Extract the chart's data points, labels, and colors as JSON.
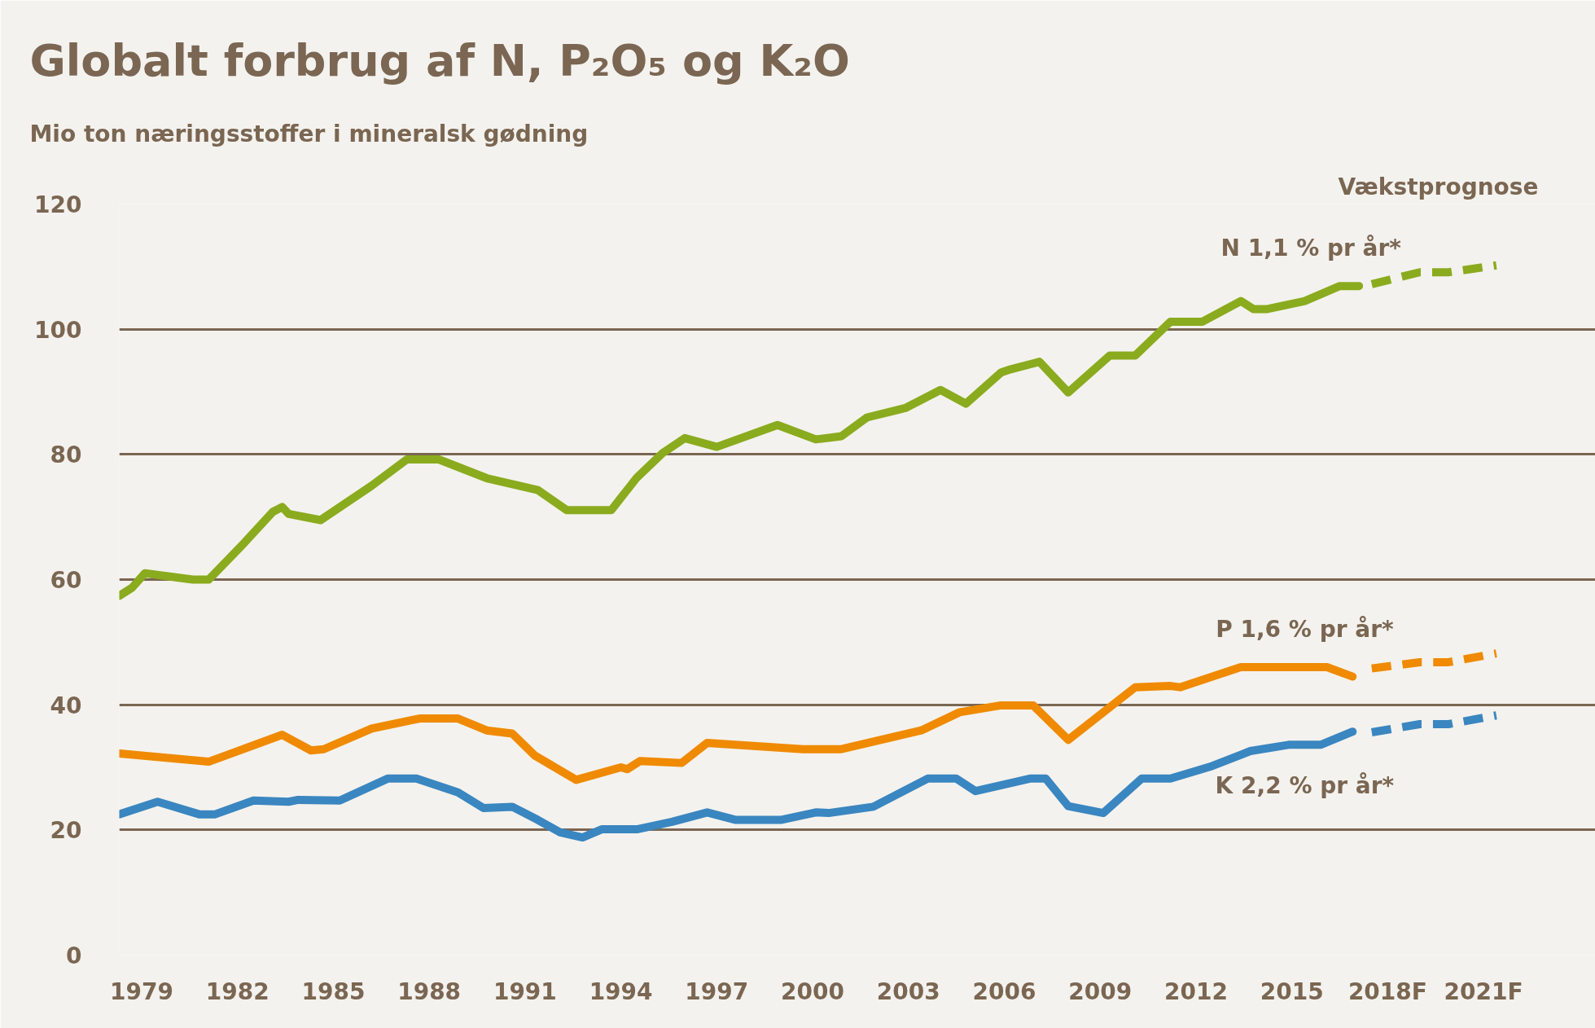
{
  "chart_data": {
    "type": "line",
    "title": "Globalt forbrug af N, P₂O₅ og K₂O",
    "ylabel": "Mio ton næringsstoffer i mineralsk gødning",
    "annotations": [
      "Vækstprognose"
    ],
    "xlim": [
      1978.3,
      2024.5
    ],
    "xticks": [
      1979,
      1982,
      1985,
      1988,
      1991,
      1994,
      1997,
      2000,
      2003,
      2006,
      2009,
      2012,
      2015,
      {
        "value": 2018,
        "label": "2018F"
      },
      {
        "value": 2021,
        "label": "2021F"
      }
    ],
    "ylim": [
      0,
      120
    ],
    "yticks": [
      0,
      20,
      40,
      60,
      80,
      100,
      120
    ],
    "grid": "y",
    "series": [
      {
        "name": "N 1,1 % pr år*",
        "color": "#8aab1e",
        "line_style": "solid",
        "x": [
          1978.3,
          1978.7,
          1979.1,
          1980.6,
          1981.1,
          1982.2,
          1983.1,
          1983.4,
          1983.6,
          1984.6,
          1986.2,
          1987.3,
          1988.3,
          1989.8,
          1991.4,
          1992.3,
          1993.7,
          1994.5,
          1995.3,
          1996.0,
          1997.0,
          1998.9,
          2000.1,
          2000.9,
          2001.7,
          2002.9,
          2004.0,
          2004.8,
          2005.9,
          2006.2,
          2007.1,
          2008.0,
          2009.3,
          2010.1,
          2011.2,
          2012.2,
          2013.4,
          2013.8,
          2014.2,
          2015.4,
          2016.5,
          2017.1
        ],
        "values": [
          57.4,
          58.7,
          61,
          60,
          60,
          65.8,
          70.8,
          71.6,
          70.5,
          69.5,
          75,
          79.2,
          79.2,
          76.2,
          74.3,
          71.1,
          71.1,
          76.3,
          80.2,
          82.6,
          81.2,
          84.7,
          82.4,
          82.9,
          85.9,
          87.4,
          90.3,
          88.1,
          93.1,
          93.6,
          94.8,
          89.9,
          95.8,
          95.8,
          101.2,
          101.2,
          104.5,
          103.2,
          103.2,
          104.5,
          106.9,
          106.9
        ]
      },
      {
        "color": "#8aab1e",
        "line_style": "dashed",
        "x": [
          2017.5,
          2019.0,
          2019.9,
          2021.4
        ],
        "values": [
          107.2,
          109.1,
          109.1,
          110.2
        ]
      },
      {
        "name": "P 1,6 % pr år*",
        "color": "#f08a00",
        "line_style": "solid",
        "x": [
          1978.3,
          1981.1,
          1983.4,
          1984.3,
          1984.7,
          1986.2,
          1987.7,
          1988.9,
          1989.8,
          1990.6,
          1991.3,
          1992.6,
          1994.0,
          1994.2,
          1994.6,
          1995.9,
          1996.7,
          1999.7,
          2000.9,
          2003.4,
          2004.6,
          2005.9,
          2006.9,
          2008.0,
          2010.1,
          2011.2,
          2011.5,
          2013.4,
          2016.1,
          2016.9
        ],
        "values": [
          32.2,
          30.9,
          35.2,
          32.7,
          32.9,
          36.2,
          37.8,
          37.8,
          35.9,
          35.4,
          31.9,
          28,
          30,
          29.7,
          31,
          30.7,
          33.9,
          32.9,
          32.9,
          35.9,
          38.8,
          39.9,
          39.9,
          34.4,
          42.8,
          43,
          42.8,
          46,
          46,
          44.5
        ]
      },
      {
        "color": "#f08a00",
        "line_style": "dashed",
        "x": [
          2017.5,
          2019.0,
          2019.9,
          2021.4
        ],
        "values": [
          45.8,
          46.8,
          46.8,
          48.2
        ]
      },
      {
        "name": "K 2,2 % pr år*",
        "color": "#3a86c0",
        "line_style": "solid",
        "x": [
          1978.3,
          1979.5,
          1980.8,
          1981.3,
          1982.5,
          1983.6,
          1983.9,
          1985.2,
          1986.7,
          1987.6,
          1988.9,
          1989.7,
          1990.6,
          1991.4,
          1992.1,
          1992.8,
          1993.4,
          1994.5,
          1995.6,
          1996.7,
          1997.6,
          1999.0,
          2000.1,
          2000.5,
          2001.9,
          2003.6,
          2004.5,
          2005.1,
          2006.8,
          2007.3,
          2008.0,
          2009.1,
          2010.3,
          2011.2,
          2012.5,
          2013.7,
          2014.9,
          2015.9,
          2016.9
        ],
        "values": [
          22.5,
          24.5,
          22.5,
          22.5,
          24.7,
          24.5,
          24.8,
          24.7,
          28.2,
          28.2,
          26,
          23.5,
          23.7,
          21.6,
          19.6,
          18.8,
          20.1,
          20.1,
          21.3,
          22.8,
          21.6,
          21.6,
          22.8,
          22.7,
          23.7,
          28.2,
          28.2,
          26.2,
          28.2,
          28.2,
          23.8,
          22.7,
          28.2,
          28.2,
          30.2,
          32.6,
          33.6,
          33.6,
          35.7
        ]
      },
      {
        "color": "#3a86c0",
        "line_style": "dashed",
        "x": [
          2017.5,
          2019.0,
          2019.9,
          2021.4
        ],
        "values": [
          35.6,
          36.9,
          36.9,
          38.3
        ]
      }
    ]
  }
}
